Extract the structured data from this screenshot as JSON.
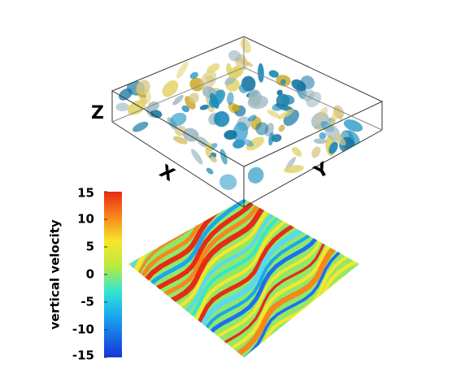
{
  "axes": {
    "x": "X",
    "y": "Y",
    "z": "Z"
  },
  "colorbar": {
    "label": "vertical velocity",
    "lim": [
      -15,
      15
    ],
    "ticks": [
      15,
      10,
      5,
      0,
      -5,
      -10,
      -15
    ]
  }
}
